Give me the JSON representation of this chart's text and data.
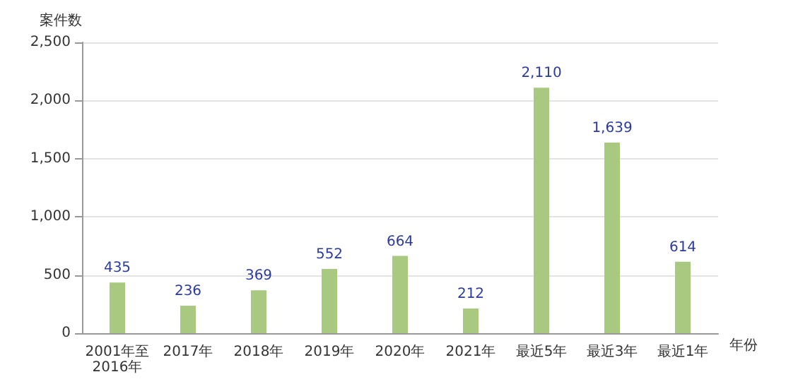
{
  "chart_data": {
    "type": "bar",
    "ylabel": "案件数",
    "xlabel": "年份",
    "categories": [
      "2001年至2016年",
      "2017年",
      "2018年",
      "2019年",
      "2020年",
      "2021年",
      "最近5年",
      "最近3年",
      "最近1年"
    ],
    "values": [
      435,
      236,
      369,
      552,
      664,
      212,
      2110,
      1639,
      614
    ],
    "value_labels": [
      "435",
      "236",
      "369",
      "552",
      "664",
      "212",
      "2,110",
      "1,639",
      "614"
    ],
    "color": "#a8c97f",
    "ylim": [
      0,
      2500
    ],
    "yticks": [
      {
        "value": 0,
        "label": "0"
      },
      {
        "value": 500,
        "label": "500"
      },
      {
        "value": 1000,
        "label": "1,000"
      },
      {
        "value": 1500,
        "label": "1,500"
      },
      {
        "value": 2000,
        "label": "2,000"
      },
      {
        "value": 2500,
        "label": "2,500"
      }
    ],
    "grid": true
  }
}
